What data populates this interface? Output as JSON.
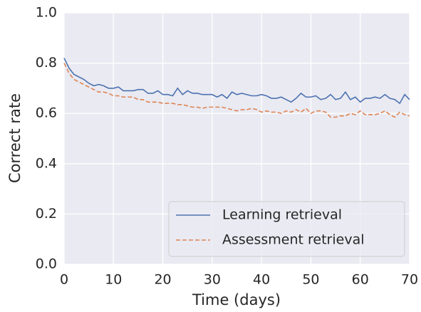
{
  "chart_data": {
    "type": "line",
    "xlabel": "Time (days)",
    "ylabel": "Correct rate",
    "x": [
      0,
      1,
      2,
      3,
      4,
      5,
      6,
      7,
      8,
      9,
      10,
      11,
      12,
      13,
      14,
      15,
      16,
      17,
      18,
      19,
      20,
      21,
      22,
      23,
      24,
      25,
      26,
      27,
      28,
      29,
      30,
      31,
      32,
      33,
      34,
      35,
      36,
      37,
      38,
      39,
      40,
      41,
      42,
      43,
      44,
      45,
      46,
      47,
      48,
      49,
      50,
      51,
      52,
      53,
      54,
      55,
      56,
      57,
      58,
      59,
      60,
      61,
      62,
      63,
      64,
      65,
      66,
      67,
      68,
      69,
      70
    ],
    "series": [
      {
        "name": "Learning retrieval",
        "color": "#4c72b0",
        "dashed": false,
        "values": [
          0.82,
          0.78,
          0.755,
          0.745,
          0.735,
          0.72,
          0.71,
          0.715,
          0.71,
          0.7,
          0.7,
          0.705,
          0.69,
          0.69,
          0.69,
          0.695,
          0.695,
          0.68,
          0.68,
          0.69,
          0.675,
          0.675,
          0.67,
          0.7,
          0.675,
          0.69,
          0.68,
          0.68,
          0.675,
          0.675,
          0.675,
          0.665,
          0.675,
          0.66,
          0.685,
          0.675,
          0.68,
          0.675,
          0.67,
          0.67,
          0.675,
          0.67,
          0.66,
          0.66,
          0.665,
          0.655,
          0.645,
          0.66,
          0.68,
          0.665,
          0.665,
          0.67,
          0.655,
          0.66,
          0.675,
          0.655,
          0.66,
          0.685,
          0.655,
          0.665,
          0.645,
          0.66,
          0.66,
          0.665,
          0.66,
          0.675,
          0.66,
          0.655,
          0.64,
          0.675,
          0.655
        ]
      },
      {
        "name": "Assessment retrieval",
        "color": "#dd8452",
        "dashed": true,
        "values": [
          0.8,
          0.76,
          0.735,
          0.725,
          0.715,
          0.705,
          0.695,
          0.685,
          0.685,
          0.68,
          0.67,
          0.67,
          0.665,
          0.665,
          0.665,
          0.655,
          0.655,
          0.645,
          0.645,
          0.645,
          0.64,
          0.64,
          0.64,
          0.635,
          0.635,
          0.63,
          0.625,
          0.625,
          0.62,
          0.625,
          0.625,
          0.625,
          0.625,
          0.62,
          0.615,
          0.61,
          0.615,
          0.615,
          0.62,
          0.615,
          0.605,
          0.61,
          0.605,
          0.605,
          0.6,
          0.61,
          0.605,
          0.615,
          0.605,
          0.62,
          0.6,
          0.61,
          0.61,
          0.605,
          0.585,
          0.585,
          0.59,
          0.59,
          0.6,
          0.595,
          0.61,
          0.595,
          0.595,
          0.595,
          0.6,
          0.61,
          0.595,
          0.585,
          0.605,
          0.595,
          0.59
        ]
      }
    ],
    "xlim": [
      0,
      70
    ],
    "xticks": [
      0,
      10,
      20,
      30,
      40,
      50,
      60,
      70
    ],
    "ylim": [
      0,
      1
    ],
    "yticks": [
      {
        "value": 0,
        "label": "0.0"
      },
      0.2,
      0.4,
      0.6,
      0.8,
      {
        "value": 1,
        "label": "1.0"
      }
    ],
    "grid": true,
    "legend": "lower right"
  }
}
